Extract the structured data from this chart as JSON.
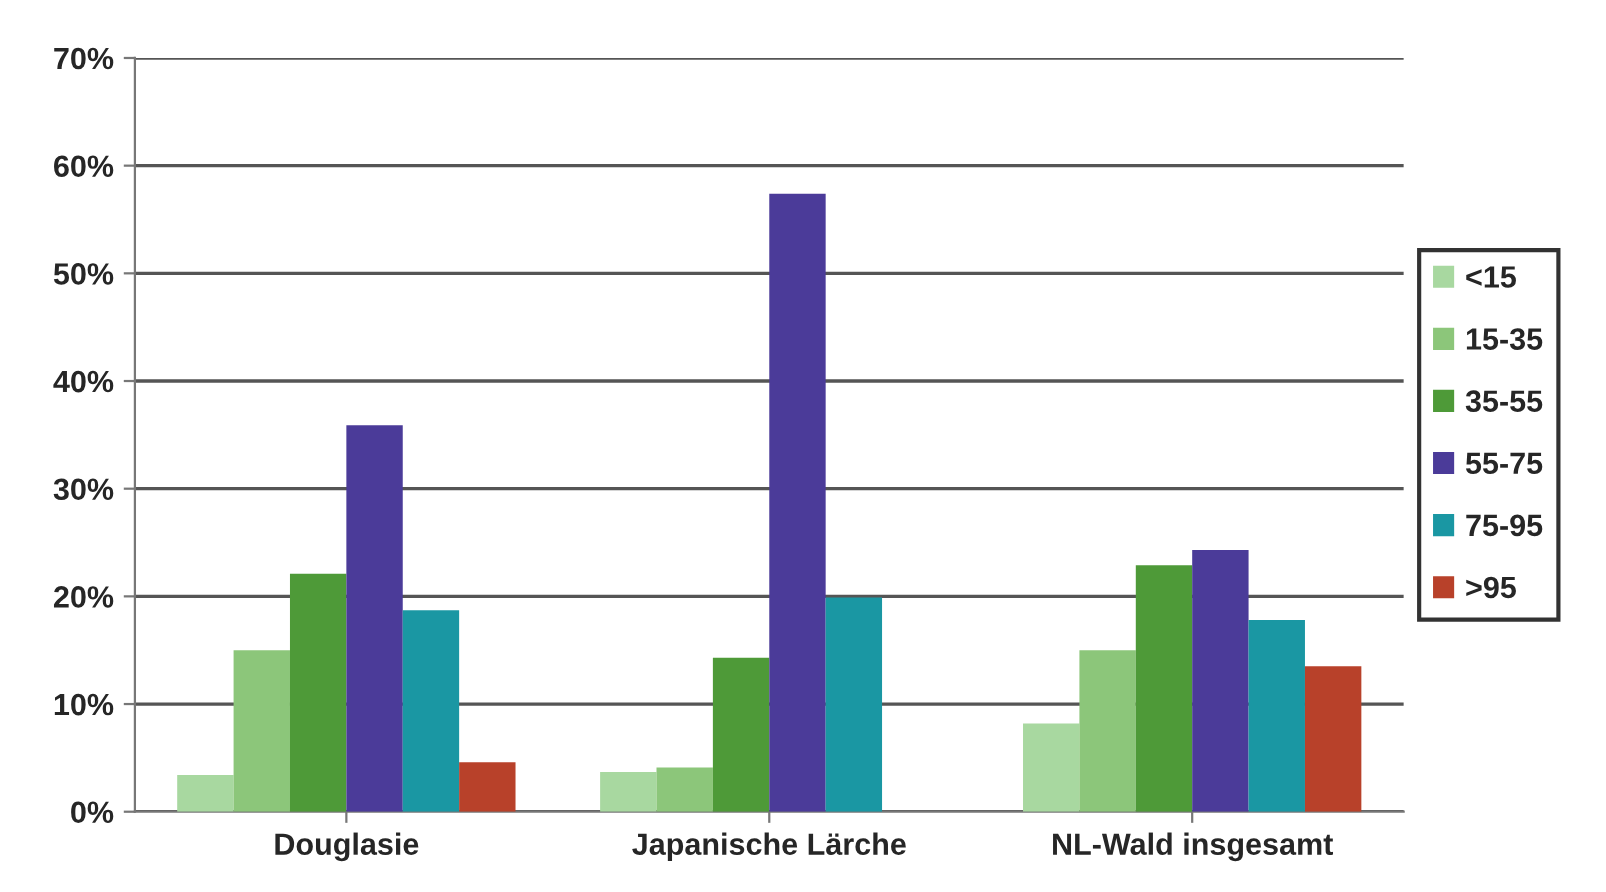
{
  "chart_data": {
    "type": "bar",
    "categories": [
      "Douglasie",
      "Japanische Lärche",
      "NL-Wald insgesamt"
    ],
    "series": [
      {
        "name": "<15",
        "color": "#a8d8a0",
        "values": [
          3.4,
          3.7,
          8.2
        ]
      },
      {
        "name": "15-35",
        "color": "#8cc67a",
        "values": [
          15.0,
          4.1,
          15.0
        ]
      },
      {
        "name": "35-55",
        "color": "#4e9a38",
        "values": [
          22.1,
          14.3,
          22.9
        ]
      },
      {
        "name": "55-75",
        "color": "#4b3b99",
        "values": [
          35.9,
          57.4,
          24.3
        ]
      },
      {
        "name": "75-95",
        "color": "#1a97a3",
        "values": [
          18.7,
          19.9,
          17.8
        ]
      },
      {
        "name": ">95",
        "color": "#b8412a",
        "values": [
          4.6,
          null,
          13.5
        ]
      }
    ],
    "ylim": [
      0,
      70
    ],
    "yticks": [
      {
        "value": 0,
        "label": "0%"
      },
      {
        "value": 10,
        "label": "10%"
      },
      {
        "value": 20,
        "label": "20%"
      },
      {
        "value": 30,
        "label": "30%"
      },
      {
        "value": 40,
        "label": "40%"
      },
      {
        "value": 50,
        "label": "50%"
      },
      {
        "value": 60,
        "label": "60%"
      },
      {
        "value": 70,
        "label": "70%"
      }
    ],
    "grid": "y",
    "legend": "right"
  }
}
